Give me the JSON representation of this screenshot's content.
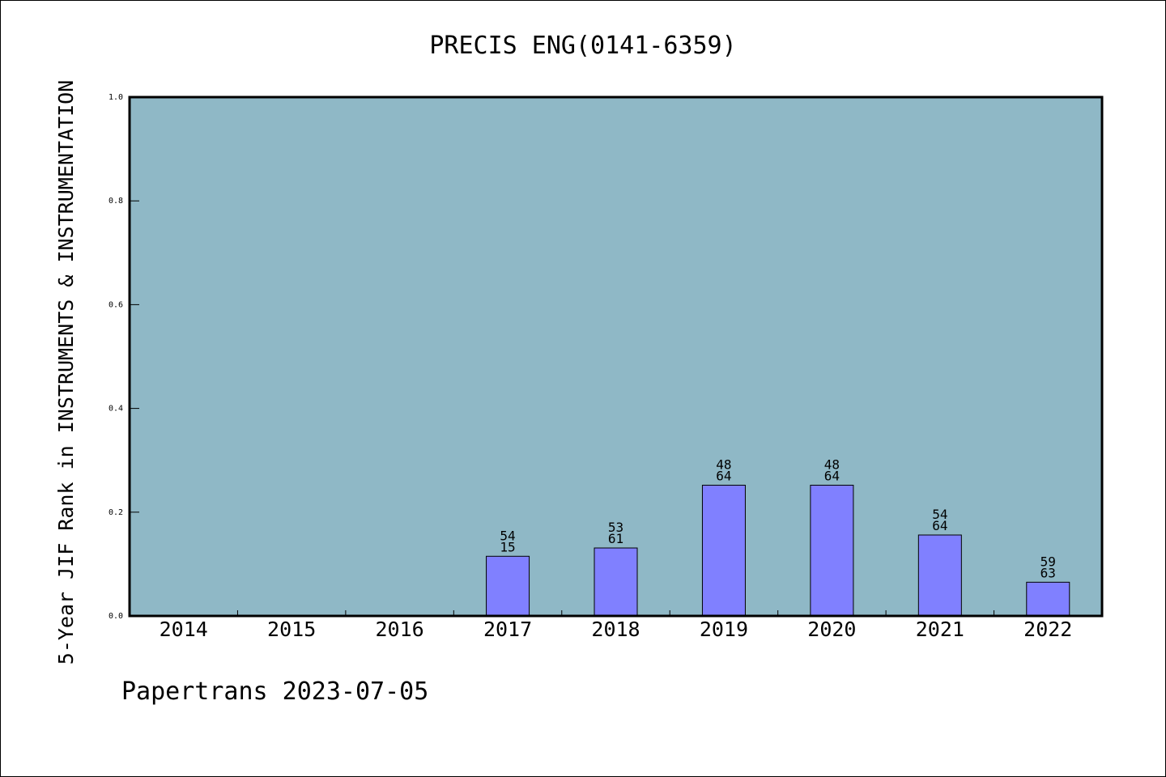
{
  "chart_data": {
    "type": "bar",
    "title": "PRECIS ENG(0141-6359)",
    "xlabel": "",
    "ylabel": "5-Year JIF Rank in INSTRUMENTS & INSTRUMENTATION",
    "footer": "Papertrans 2023-07-05",
    "ylim": [
      0,
      1.0
    ],
    "yticks": [
      "0.0",
      "0.2",
      "0.4",
      "0.6",
      "0.8",
      "1.0"
    ],
    "categories": [
      "2014",
      "2015",
      "2016",
      "2017",
      "2018",
      "2019",
      "2020",
      "2021",
      "2022"
    ],
    "values": [
      null,
      null,
      null,
      0.115,
      0.131,
      0.252,
      0.252,
      0.156,
      0.065
    ],
    "labels": [
      null,
      null,
      null,
      {
        "top": "54",
        "bottom": "15"
      },
      {
        "top": "53",
        "bottom": "61"
      },
      {
        "top": "48",
        "bottom": "64"
      },
      {
        "top": "48",
        "bottom": "64"
      },
      {
        "top": "54",
        "bottom": "64"
      },
      {
        "top": "59",
        "bottom": "63"
      }
    ],
    "grid": false,
    "colors": {
      "plot_background": "#8fb8c6",
      "bar_fill": "#8080ff",
      "bar_stroke": "#000000"
    }
  }
}
